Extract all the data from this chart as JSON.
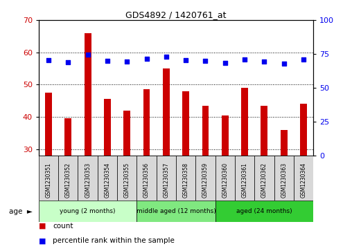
{
  "title": "GDS4892 / 1420761_at",
  "samples": [
    "GSM1230351",
    "GSM1230352",
    "GSM1230353",
    "GSM1230354",
    "GSM1230355",
    "GSM1230356",
    "GSM1230357",
    "GSM1230358",
    "GSM1230359",
    "GSM1230360",
    "GSM1230361",
    "GSM1230362",
    "GSM1230363",
    "GSM1230364"
  ],
  "counts": [
    47.5,
    39.5,
    66.0,
    45.5,
    42.0,
    48.5,
    55.0,
    48.0,
    43.5,
    40.5,
    49.0,
    43.5,
    36.0,
    44.0
  ],
  "percentiles": [
    70.5,
    69.0,
    74.5,
    70.0,
    69.5,
    71.5,
    73.0,
    70.5,
    70.0,
    68.5,
    71.0,
    69.5,
    68.0,
    71.0
  ],
  "groups": [
    {
      "label": "young (2 months)",
      "start": 0,
      "end": 4,
      "color": "#c8ffc8"
    },
    {
      "label": "middle aged (12 months)",
      "start": 5,
      "end": 8,
      "color": "#80e880"
    },
    {
      "label": "aged (24 months)",
      "start": 9,
      "end": 13,
      "color": "#33cc33"
    }
  ],
  "ylim_left": [
    28,
    70
  ],
  "ylim_right": [
    0,
    100
  ],
  "yticks_left": [
    30,
    40,
    50,
    60,
    70
  ],
  "yticks_right": [
    0,
    25,
    50,
    75,
    100
  ],
  "bar_color": "#cc0000",
  "dot_color": "#0000ee",
  "bg_color": "#ffffff",
  "plot_bg": "#ffffff",
  "grid_bg": "#f0f0f0",
  "bar_width": 0.35
}
